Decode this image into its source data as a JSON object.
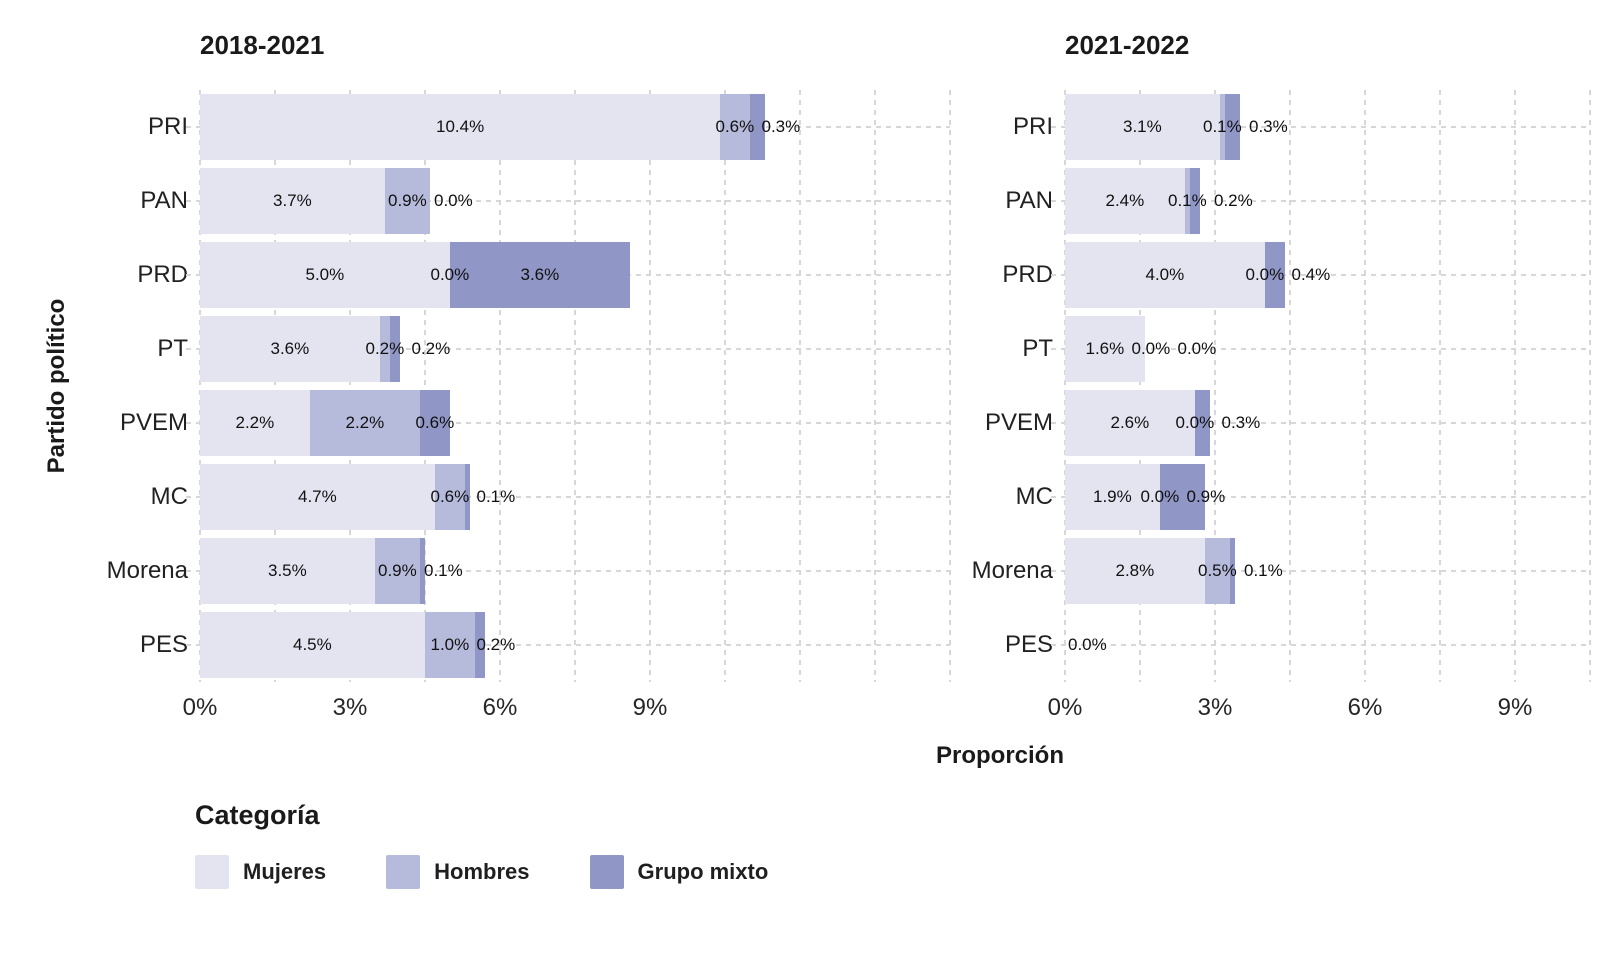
{
  "page": {
    "background": "#ffffff"
  },
  "chart_data": {
    "type": "bar",
    "orientation": "horizontal",
    "stacked": true,
    "grid": "dashed",
    "ylabel": "Partido político",
    "xlabel": "Proporción",
    "x_ticks_percent": [
      0,
      3,
      6,
      9
    ],
    "minor_grid_step_percent": 1.5,
    "categories": [
      "PRI",
      "PAN",
      "PRD",
      "PT",
      "PVEM",
      "MC",
      "Morena",
      "PES"
    ],
    "legend": {
      "title": "Categoría",
      "entries": [
        {
          "label": "Mujeres",
          "color": "#e3e4f0"
        },
        {
          "label": "Hombres",
          "color": "#b6badb"
        },
        {
          "label": "Grupo mixto",
          "color": "#9096c5"
        }
      ]
    },
    "panels": [
      {
        "title": "2018-2021",
        "xmax_percent": 15,
        "series": [
          {
            "name": "Mujeres",
            "values": [
              10.4,
              3.7,
              5.0,
              3.6,
              2.2,
              4.7,
              3.5,
              4.5
            ]
          },
          {
            "name": "Hombres",
            "values": [
              0.6,
              0.9,
              0.0,
              0.2,
              2.2,
              0.6,
              0.9,
              1.0
            ]
          },
          {
            "name": "Grupo mixto",
            "values": [
              0.3,
              0.0,
              3.6,
              0.2,
              0.6,
              0.1,
              0.1,
              0.2
            ]
          }
        ]
      },
      {
        "title": "2021-2022",
        "xmax_percent": 10.5,
        "series": [
          {
            "name": "Mujeres",
            "values": [
              3.1,
              2.4,
              4.0,
              1.6,
              2.6,
              1.9,
              2.8,
              0.0
            ]
          },
          {
            "name": "Hombres",
            "values": [
              0.1,
              0.1,
              0.0,
              0.0,
              0.0,
              0.0,
              0.5,
              null
            ]
          },
          {
            "name": "Grupo mixto",
            "values": [
              0.3,
              0.2,
              0.4,
              0.0,
              0.3,
              0.9,
              0.1,
              null
            ]
          }
        ]
      }
    ]
  }
}
